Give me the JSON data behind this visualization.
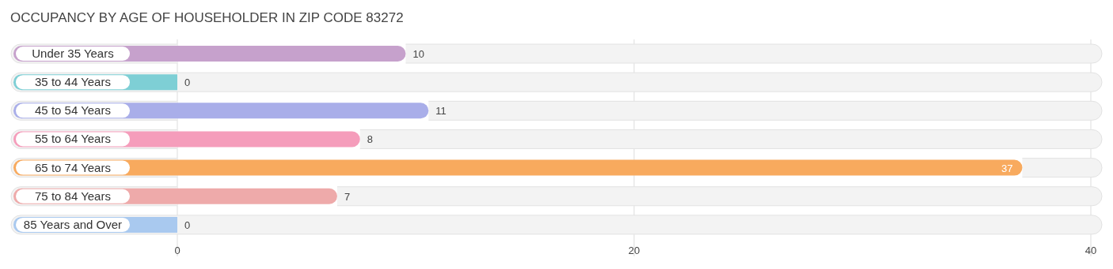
{
  "chart_data": {
    "type": "bar",
    "orientation": "horizontal",
    "title": "OCCUPANCY BY AGE OF HOUSEHOLDER IN ZIP CODE 83272",
    "categories": [
      "Under 35 Years",
      "35 to 44 Years",
      "45 to 54 Years",
      "55 to 64 Years",
      "65 to 74 Years",
      "75 to 84 Years",
      "85 Years and Over"
    ],
    "values": [
      10,
      0,
      11,
      8,
      37,
      7,
      0
    ],
    "colors": [
      "#c6a1cc",
      "#7ecfd5",
      "#a9aee9",
      "#f59dbb",
      "#f8aa5e",
      "#eeaaaa",
      "#a9c9ef"
    ],
    "xlim": [
      0,
      40
    ],
    "xticks": [
      0,
      20,
      40
    ],
    "grid": "x",
    "data_labels": true
  }
}
